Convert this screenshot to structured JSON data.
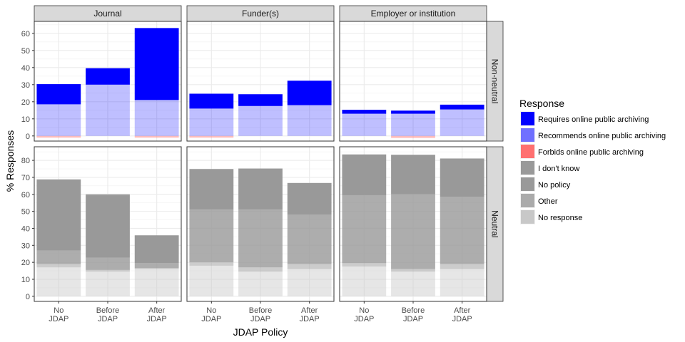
{
  "chart_data": {
    "type": "bar",
    "stacked": true,
    "facet_columns": [
      "Journal",
      "Funder(s)",
      "Employer or institution"
    ],
    "facet_rows": [
      "Non-neutral",
      "Neutral"
    ],
    "categories": [
      [
        "No",
        "JDAP"
      ],
      [
        "Before",
        "JDAP"
      ],
      [
        "After",
        "JDAP"
      ]
    ],
    "xlabel": "JDAP Policy",
    "ylabel": "% Responses",
    "ylim": {
      "Non-neutral": [
        -3,
        67
      ],
      "Neutral": [
        -3,
        88
      ]
    },
    "yticks": {
      "Non-neutral": [
        0,
        10,
        20,
        30,
        40,
        50,
        60
      ],
      "Neutral": [
        0,
        10,
        20,
        30,
        40,
        50,
        60,
        70,
        80
      ]
    },
    "grid": true,
    "legend": {
      "title": "Response",
      "position": "right",
      "items": [
        {
          "label": "Requires online public archiving",
          "color": "#0000ff"
        },
        {
          "label": "Recommends online public archiving",
          "color": "#7070ff"
        },
        {
          "label": "Forbids online public archiving",
          "color": "#ff7070"
        },
        {
          "label": "I don't know",
          "color": "#999999"
        },
        {
          "label": "No policy",
          "color": "#999999"
        },
        {
          "label": "Other",
          "color": "#aaaaaa"
        },
        {
          "label": "No response",
          "color": "#c8c8c8"
        }
      ]
    },
    "panels": [
      {
        "column": "Journal",
        "row": "Non-neutral",
        "bars": [
          [
            {
              "response": "Forbids online public archiving",
              "y0": -1,
              "y1": 0,
              "color": "#ff7070",
              "opacity": 0.45
            },
            {
              "response": "Recommends online public archiving",
              "y0": 0,
              "y1": 18.5,
              "color": "#0000ff",
              "opacity": 0.25
            },
            {
              "response": "Requires online public archiving",
              "y0": 18.5,
              "y1": 30.3,
              "color": "#0000ff",
              "opacity": 1
            }
          ],
          [
            {
              "response": "Recommends online public archiving",
              "y0": 0,
              "y1": 30,
              "color": "#0000ff",
              "opacity": 0.25
            },
            {
              "response": "Requires online public archiving",
              "y0": 30,
              "y1": 39.6,
              "color": "#0000ff",
              "opacity": 1
            }
          ],
          [
            {
              "response": "Forbids online public archiving",
              "y0": -1,
              "y1": 0,
              "color": "#ff7070",
              "opacity": 0.45
            },
            {
              "response": "Recommends online public archiving",
              "y0": 0,
              "y1": 21,
              "color": "#0000ff",
              "opacity": 0.25
            },
            {
              "response": "Requires online public archiving",
              "y0": 21,
              "y1": 63.1,
              "color": "#0000ff",
              "opacity": 1
            }
          ]
        ]
      },
      {
        "column": "Funder(s)",
        "row": "Non-neutral",
        "bars": [
          [
            {
              "response": "Forbids online public archiving",
              "y0": -1,
              "y1": 0,
              "color": "#ff7070",
              "opacity": 0.45
            },
            {
              "response": "Recommends online public archiving",
              "y0": 0,
              "y1": 16,
              "color": "#0000ff",
              "opacity": 0.25
            },
            {
              "response": "Requires online public archiving",
              "y0": 16,
              "y1": 24.7,
              "color": "#0000ff",
              "opacity": 1
            }
          ],
          [
            {
              "response": "Recommends online public archiving",
              "y0": 0,
              "y1": 17.5,
              "color": "#0000ff",
              "opacity": 0.25
            },
            {
              "response": "Requires online public archiving",
              "y0": 17.5,
              "y1": 24.4,
              "color": "#0000ff",
              "opacity": 1
            }
          ],
          [
            {
              "response": "Recommends online public archiving",
              "y0": 0,
              "y1": 18,
              "color": "#0000ff",
              "opacity": 0.25
            },
            {
              "response": "Requires online public archiving",
              "y0": 18,
              "y1": 32.3,
              "color": "#0000ff",
              "opacity": 1
            }
          ]
        ]
      },
      {
        "column": "Employer or institution",
        "row": "Non-neutral",
        "bars": [
          [
            {
              "response": "Recommends online public archiving",
              "y0": 0,
              "y1": 13,
              "color": "#0000ff",
              "opacity": 0.25
            },
            {
              "response": "Requires online public archiving",
              "y0": 13,
              "y1": 15.3,
              "color": "#0000ff",
              "opacity": 1
            }
          ],
          [
            {
              "response": "Forbids online public archiving",
              "y0": -1.2,
              "y1": 0,
              "color": "#ff7070",
              "opacity": 0.45
            },
            {
              "response": "Recommends online public archiving",
              "y0": 0,
              "y1": 13,
              "color": "#0000ff",
              "opacity": 0.25
            },
            {
              "response": "Requires online public archiving",
              "y0": 13,
              "y1": 14.8,
              "color": "#0000ff",
              "opacity": 1
            }
          ],
          [
            {
              "response": "Recommends online public archiving",
              "y0": 0,
              "y1": 15.5,
              "color": "#0000ff",
              "opacity": 0.25
            },
            {
              "response": "Requires online public archiving",
              "y0": 15.5,
              "y1": 18.3,
              "color": "#0000ff",
              "opacity": 1
            }
          ]
        ]
      },
      {
        "column": "Journal",
        "row": "Neutral",
        "bars": [
          [
            {
              "response": "No response",
              "y0": 0,
              "y1": 17,
              "color": "#c8c8c8",
              "opacity": 0.45
            },
            {
              "response": "Other",
              "y0": 17,
              "y1": 19,
              "color": "#aaaaaa",
              "opacity": 0.6
            },
            {
              "response": "I don't know",
              "y0": 19,
              "y1": 27,
              "color": "#999999",
              "opacity": 0.8
            },
            {
              "response": "No policy",
              "y0": 27,
              "y1": 68.8,
              "color": "#999999",
              "opacity": 1
            }
          ],
          [
            {
              "response": "No response",
              "y0": 0,
              "y1": 14.5,
              "color": "#c8c8c8",
              "opacity": 0.45
            },
            {
              "response": "Other",
              "y0": 14.5,
              "y1": 15.5,
              "color": "#aaaaaa",
              "opacity": 0.6
            },
            {
              "response": "I don't know",
              "y0": 15.5,
              "y1": 22.8,
              "color": "#999999",
              "opacity": 0.8
            },
            {
              "response": "No policy",
              "y0": 22.8,
              "y1": 59.7,
              "color": "#999999",
              "opacity": 1
            },
            {
              "response": "Other",
              "y0": 59.7,
              "y1": 60.3,
              "color": "#aaaaaa",
              "opacity": 0.6
            }
          ],
          [
            {
              "response": "No response",
              "y0": 0,
              "y1": 16,
              "color": "#c8c8c8",
              "opacity": 0.45
            },
            {
              "response": "Other",
              "y0": 16,
              "y1": 16.6,
              "color": "#aaaaaa",
              "opacity": 0.6
            },
            {
              "response": "I don't know",
              "y0": 16.6,
              "y1": 19.5,
              "color": "#999999",
              "opacity": 0.8
            },
            {
              "response": "No policy",
              "y0": 19.5,
              "y1": 35.9,
              "color": "#999999",
              "opacity": 1
            }
          ]
        ]
      },
      {
        "column": "Funder(s)",
        "row": "Neutral",
        "bars": [
          [
            {
              "response": "No response",
              "y0": 0,
              "y1": 18,
              "color": "#c8c8c8",
              "opacity": 0.45
            },
            {
              "response": "Other",
              "y0": 18,
              "y1": 20,
              "color": "#aaaaaa",
              "opacity": 0.6
            },
            {
              "response": "I don't know",
              "y0": 20,
              "y1": 51,
              "color": "#999999",
              "opacity": 0.8
            },
            {
              "response": "No policy",
              "y0": 51,
              "y1": 74.9,
              "color": "#999999",
              "opacity": 1
            }
          ],
          [
            {
              "response": "No response",
              "y0": 0,
              "y1": 14.5,
              "color": "#c8c8c8",
              "opacity": 0.45
            },
            {
              "response": "Other",
              "y0": 14.5,
              "y1": 17,
              "color": "#aaaaaa",
              "opacity": 0.6
            },
            {
              "response": "I don't know",
              "y0": 17,
              "y1": 51,
              "color": "#999999",
              "opacity": 0.8
            },
            {
              "response": "No policy",
              "y0": 51,
              "y1": 75.2,
              "color": "#999999",
              "opacity": 1
            }
          ],
          [
            {
              "response": "No response",
              "y0": 0,
              "y1": 16,
              "color": "#c8c8c8",
              "opacity": 0.45
            },
            {
              "response": "Other",
              "y0": 16,
              "y1": 19,
              "color": "#aaaaaa",
              "opacity": 0.6
            },
            {
              "response": "I don't know",
              "y0": 19,
              "y1": 48,
              "color": "#999999",
              "opacity": 0.8
            },
            {
              "response": "No policy",
              "y0": 48,
              "y1": 66.7,
              "color": "#999999",
              "opacity": 1
            }
          ]
        ]
      },
      {
        "column": "Employer or institution",
        "row": "Neutral",
        "bars": [
          [
            {
              "response": "No response",
              "y0": 0,
              "y1": 17.5,
              "color": "#c8c8c8",
              "opacity": 0.45
            },
            {
              "response": "Other",
              "y0": 17.5,
              "y1": 19.5,
              "color": "#aaaaaa",
              "opacity": 0.6
            },
            {
              "response": "I don't know",
              "y0": 19.5,
              "y1": 59.5,
              "color": "#999999",
              "opacity": 0.8
            },
            {
              "response": "No policy",
              "y0": 59.5,
              "y1": 83.5,
              "color": "#999999",
              "opacity": 1
            }
          ],
          [
            {
              "response": "No response",
              "y0": 0,
              "y1": 14.5,
              "color": "#c8c8c8",
              "opacity": 0.45
            },
            {
              "response": "Other",
              "y0": 14.5,
              "y1": 16,
              "color": "#aaaaaa",
              "opacity": 0.6
            },
            {
              "response": "I don't know",
              "y0": 16,
              "y1": 60,
              "color": "#999999",
              "opacity": 0.8
            },
            {
              "response": "No policy",
              "y0": 60,
              "y1": 83.3,
              "color": "#999999",
              "opacity": 1
            }
          ],
          [
            {
              "response": "No response",
              "y0": 0,
              "y1": 16,
              "color": "#c8c8c8",
              "opacity": 0.45
            },
            {
              "response": "Other",
              "y0": 16,
              "y1": 19,
              "color": "#aaaaaa",
              "opacity": 0.6
            },
            {
              "response": "I don't know",
              "y0": 19,
              "y1": 58.5,
              "color": "#999999",
              "opacity": 0.8
            },
            {
              "response": "No policy",
              "y0": 58.5,
              "y1": 81.1,
              "color": "#999999",
              "opacity": 1
            }
          ]
        ]
      }
    ]
  }
}
